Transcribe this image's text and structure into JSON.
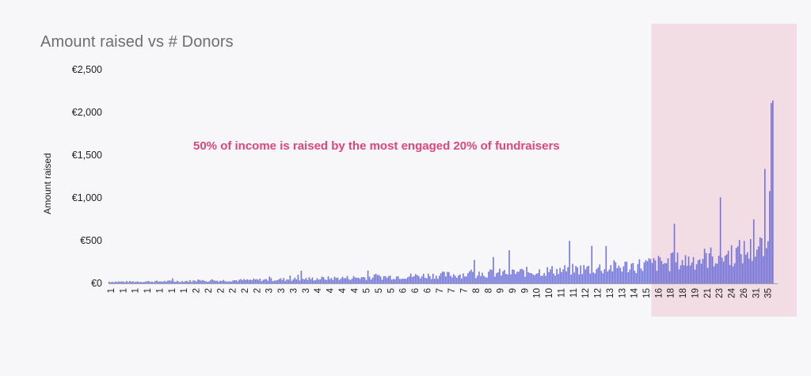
{
  "chart_data": {
    "type": "bar",
    "title": "Amount raised vs # Donors",
    "ylabel": "Amount raised",
    "xlabel": "",
    "ylim": [
      0,
      2500
    ],
    "y_ticks": [
      "€0",
      "€500",
      "€1,000",
      "€1,500",
      "€2,000",
      "€2,500"
    ],
    "y_tick_values": [
      0,
      500,
      1000,
      1500,
      2000,
      2500
    ],
    "x_tick_labels": [
      "1",
      "1",
      "1",
      "1",
      "1",
      "1",
      "1",
      "2",
      "2",
      "2",
      "2",
      "2",
      "2",
      "3",
      "3",
      "3",
      "3",
      "4",
      "4",
      "4",
      "4",
      "5",
      "5",
      "5",
      "6",
      "6",
      "6",
      "7",
      "7",
      "7",
      "8",
      "8",
      "9",
      "9",
      "9",
      "10",
      "10",
      "11",
      "11",
      "12",
      "12",
      "13",
      "13",
      "14",
      "15",
      "16",
      "18",
      "18",
      "19",
      "21",
      "23",
      "24",
      "26",
      "31",
      "35"
    ],
    "annotation": "50% of income is raised by the most engaged 20% of fundraisers",
    "highlight": {
      "description_region": "top 20% of fundraisers",
      "from_label": "16",
      "to_label": "35",
      "color": "#f3dde5"
    },
    "bar_color": "#5a5fd6",
    "grid": false,
    "legend": "none"
  }
}
